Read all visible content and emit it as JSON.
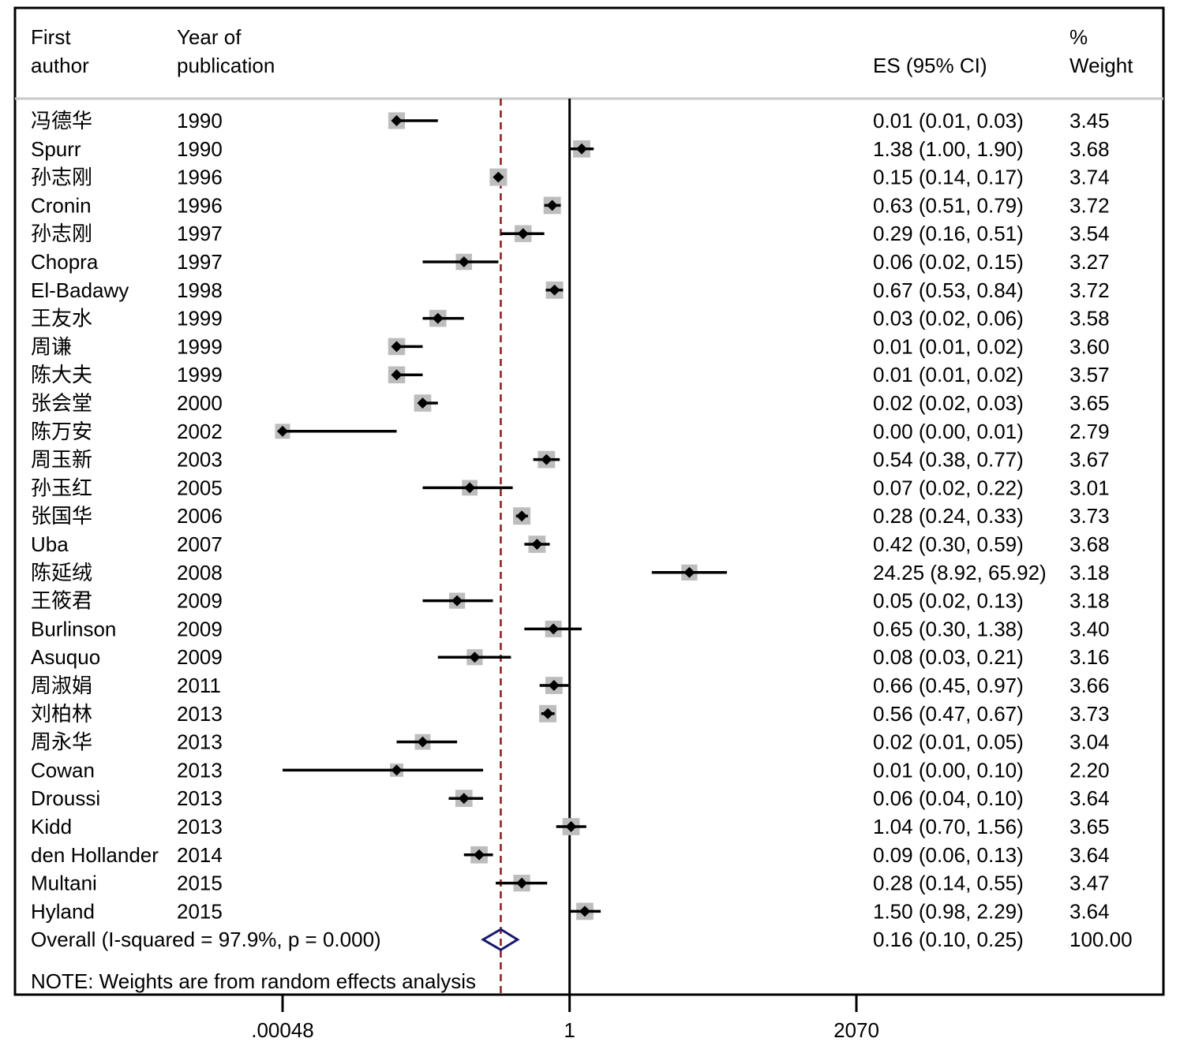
{
  "headers": {
    "author_line1": "First",
    "author_line2": "author",
    "year_line1": "Year of",
    "year_line2": "publication",
    "es": "ES (95% CI)",
    "weight_line1": "%",
    "weight_line2": "Weight"
  },
  "note": "NOTE: Weights are from random effects analysis",
  "colors": {
    "marker": "#000000",
    "weight_box": "#bdbdbd",
    "ci_line": "#000000",
    "null_line": "#000000",
    "overall_line": "#8b1a1a",
    "diamond": "#1a1a6e",
    "frame": "#000000",
    "separator": "#c8c8c8"
  },
  "chart_data": {
    "type": "forest",
    "scale": "log",
    "null_value": 1,
    "xlim": [
      0.00048,
      2070
    ],
    "x_ticks": [
      {
        "value": 0.00048,
        "label": ".00048"
      },
      {
        "value": 1,
        "label": "1"
      },
      {
        "value": 2070,
        "label": "2070"
      }
    ],
    "studies": [
      {
        "author": "冯德华",
        "year": "1990",
        "es": 0.01,
        "lo": 0.01,
        "hi": 0.03,
        "es_text": "0.01 (0.01, 0.03)",
        "weight": 3.45,
        "weight_text": "3.45"
      },
      {
        "author": "Spurr",
        "year": "1990",
        "es": 1.38,
        "lo": 1.0,
        "hi": 1.9,
        "es_text": "1.38 (1.00, 1.90)",
        "weight": 3.68,
        "weight_text": "3.68"
      },
      {
        "author": "孙志刚",
        "year": "1996",
        "es": 0.15,
        "lo": 0.14,
        "hi": 0.17,
        "es_text": "0.15 (0.14, 0.17)",
        "weight": 3.74,
        "weight_text": "3.74"
      },
      {
        "author": "Cronin",
        "year": "1996",
        "es": 0.63,
        "lo": 0.51,
        "hi": 0.79,
        "es_text": "0.63 (0.51, 0.79)",
        "weight": 3.72,
        "weight_text": "3.72"
      },
      {
        "author": "孙志刚",
        "year": "1997",
        "es": 0.29,
        "lo": 0.16,
        "hi": 0.51,
        "es_text": "0.29 (0.16, 0.51)",
        "weight": 3.54,
        "weight_text": "3.54"
      },
      {
        "author": "Chopra",
        "year": "1997",
        "es": 0.06,
        "lo": 0.02,
        "hi": 0.15,
        "es_text": "0.06 (0.02, 0.15)",
        "weight": 3.27,
        "weight_text": "3.27"
      },
      {
        "author": "El-Badawy",
        "year": "1998",
        "es": 0.67,
        "lo": 0.53,
        "hi": 0.84,
        "es_text": "0.67 (0.53, 0.84)",
        "weight": 3.72,
        "weight_text": "3.72"
      },
      {
        "author": "王友水",
        "year": "1999",
        "es": 0.03,
        "lo": 0.02,
        "hi": 0.06,
        "es_text": "0.03 (0.02, 0.06)",
        "weight": 3.58,
        "weight_text": "3.58"
      },
      {
        "author": "周谦",
        "year": "1999",
        "es": 0.01,
        "lo": 0.01,
        "hi": 0.02,
        "es_text": "0.01 (0.01, 0.02)",
        "weight": 3.6,
        "weight_text": "3.60"
      },
      {
        "author": "陈大夫",
        "year": "1999",
        "es": 0.01,
        "lo": 0.01,
        "hi": 0.02,
        "es_text": "0.01 (0.01, 0.02)",
        "weight": 3.57,
        "weight_text": "3.57"
      },
      {
        "author": "张会堂",
        "year": "2000",
        "es": 0.02,
        "lo": 0.02,
        "hi": 0.03,
        "es_text": "0.02 (0.02, 0.03)",
        "weight": 3.65,
        "weight_text": "3.65"
      },
      {
        "author": "陈万安",
        "year": "2002",
        "es": 0.0,
        "lo": 0.0,
        "hi": 0.01,
        "es_text": "0.00 (0.00, 0.01)",
        "weight": 2.79,
        "weight_text": "2.79"
      },
      {
        "author": "周玉新",
        "year": "2003",
        "es": 0.54,
        "lo": 0.38,
        "hi": 0.77,
        "es_text": "0.54 (0.38, 0.77)",
        "weight": 3.67,
        "weight_text": "3.67"
      },
      {
        "author": "孙玉红",
        "year": "2005",
        "es": 0.07,
        "lo": 0.02,
        "hi": 0.22,
        "es_text": "0.07 (0.02, 0.22)",
        "weight": 3.01,
        "weight_text": "3.01"
      },
      {
        "author": "张国华",
        "year": "2006",
        "es": 0.28,
        "lo": 0.24,
        "hi": 0.33,
        "es_text": "0.28 (0.24, 0.33)",
        "weight": 3.73,
        "weight_text": "3.73"
      },
      {
        "author": "Uba",
        "year": "2007",
        "es": 0.42,
        "lo": 0.3,
        "hi": 0.59,
        "es_text": "0.42 (0.30, 0.59)",
        "weight": 3.68,
        "weight_text": "3.68"
      },
      {
        "author": "陈延绒",
        "year": "2008",
        "es": 24.25,
        "lo": 8.92,
        "hi": 65.92,
        "es_text": "24.25 (8.92, 65.92)",
        "weight": 3.18,
        "weight_text": "3.18"
      },
      {
        "author": "王筱君",
        "year": "2009",
        "es": 0.05,
        "lo": 0.02,
        "hi": 0.13,
        "es_text": "0.05 (0.02, 0.13)",
        "weight": 3.18,
        "weight_text": "3.18"
      },
      {
        "author": "Burlinson",
        "year": "2009",
        "es": 0.65,
        "lo": 0.3,
        "hi": 1.38,
        "es_text": "0.65 (0.30, 1.38)",
        "weight": 3.4,
        "weight_text": "3.40"
      },
      {
        "author": "Asuquo",
        "year": "2009",
        "es": 0.08,
        "lo": 0.03,
        "hi": 0.21,
        "es_text": "0.08 (0.03, 0.21)",
        "weight": 3.16,
        "weight_text": "3.16"
      },
      {
        "author": "周淑娟",
        "year": "2011",
        "es": 0.66,
        "lo": 0.45,
        "hi": 0.97,
        "es_text": "0.66 (0.45, 0.97)",
        "weight": 3.66,
        "weight_text": "3.66"
      },
      {
        "author": "刘柏林",
        "year": "2013",
        "es": 0.56,
        "lo": 0.47,
        "hi": 0.67,
        "es_text": "0.56 (0.47, 0.67)",
        "weight": 3.73,
        "weight_text": "3.73"
      },
      {
        "author": "周永华",
        "year": "2013",
        "es": 0.02,
        "lo": 0.01,
        "hi": 0.05,
        "es_text": "0.02 (0.01, 0.05)",
        "weight": 3.04,
        "weight_text": "3.04"
      },
      {
        "author": "Cowan",
        "year": "2013",
        "es": 0.01,
        "lo": 0.0,
        "hi": 0.1,
        "es_text": "0.01 (0.00, 0.10)",
        "weight": 2.2,
        "weight_text": "2.20"
      },
      {
        "author": "Droussi",
        "year": "2013",
        "es": 0.06,
        "lo": 0.04,
        "hi": 0.1,
        "es_text": "0.06 (0.04, 0.10)",
        "weight": 3.64,
        "weight_text": "3.64"
      },
      {
        "author": "Kidd",
        "year": "2013",
        "es": 1.04,
        "lo": 0.7,
        "hi": 1.56,
        "es_text": "1.04 (0.70, 1.56)",
        "weight": 3.65,
        "weight_text": "3.65"
      },
      {
        "author": "den Hollander",
        "year": "2014",
        "es": 0.09,
        "lo": 0.06,
        "hi": 0.13,
        "es_text": "0.09 (0.06, 0.13)",
        "weight": 3.64,
        "weight_text": "3.64"
      },
      {
        "author": "Multani",
        "year": "2015",
        "es": 0.28,
        "lo": 0.14,
        "hi": 0.55,
        "es_text": "0.28 (0.14, 0.55)",
        "weight": 3.47,
        "weight_text": "3.47"
      },
      {
        "author": "Hyland",
        "year": "2015",
        "es": 1.5,
        "lo": 0.98,
        "hi": 2.29,
        "es_text": "1.50 (0.98, 2.29)",
        "weight": 3.64,
        "weight_text": "3.64"
      }
    ],
    "overall": {
      "label": "Overall  (I-squared = 97.9%, p = 0.000)",
      "es": 0.16,
      "lo": 0.1,
      "hi": 0.25,
      "es_text": "0.16 (0.10, 0.25)",
      "weight_text": "100.00"
    }
  }
}
